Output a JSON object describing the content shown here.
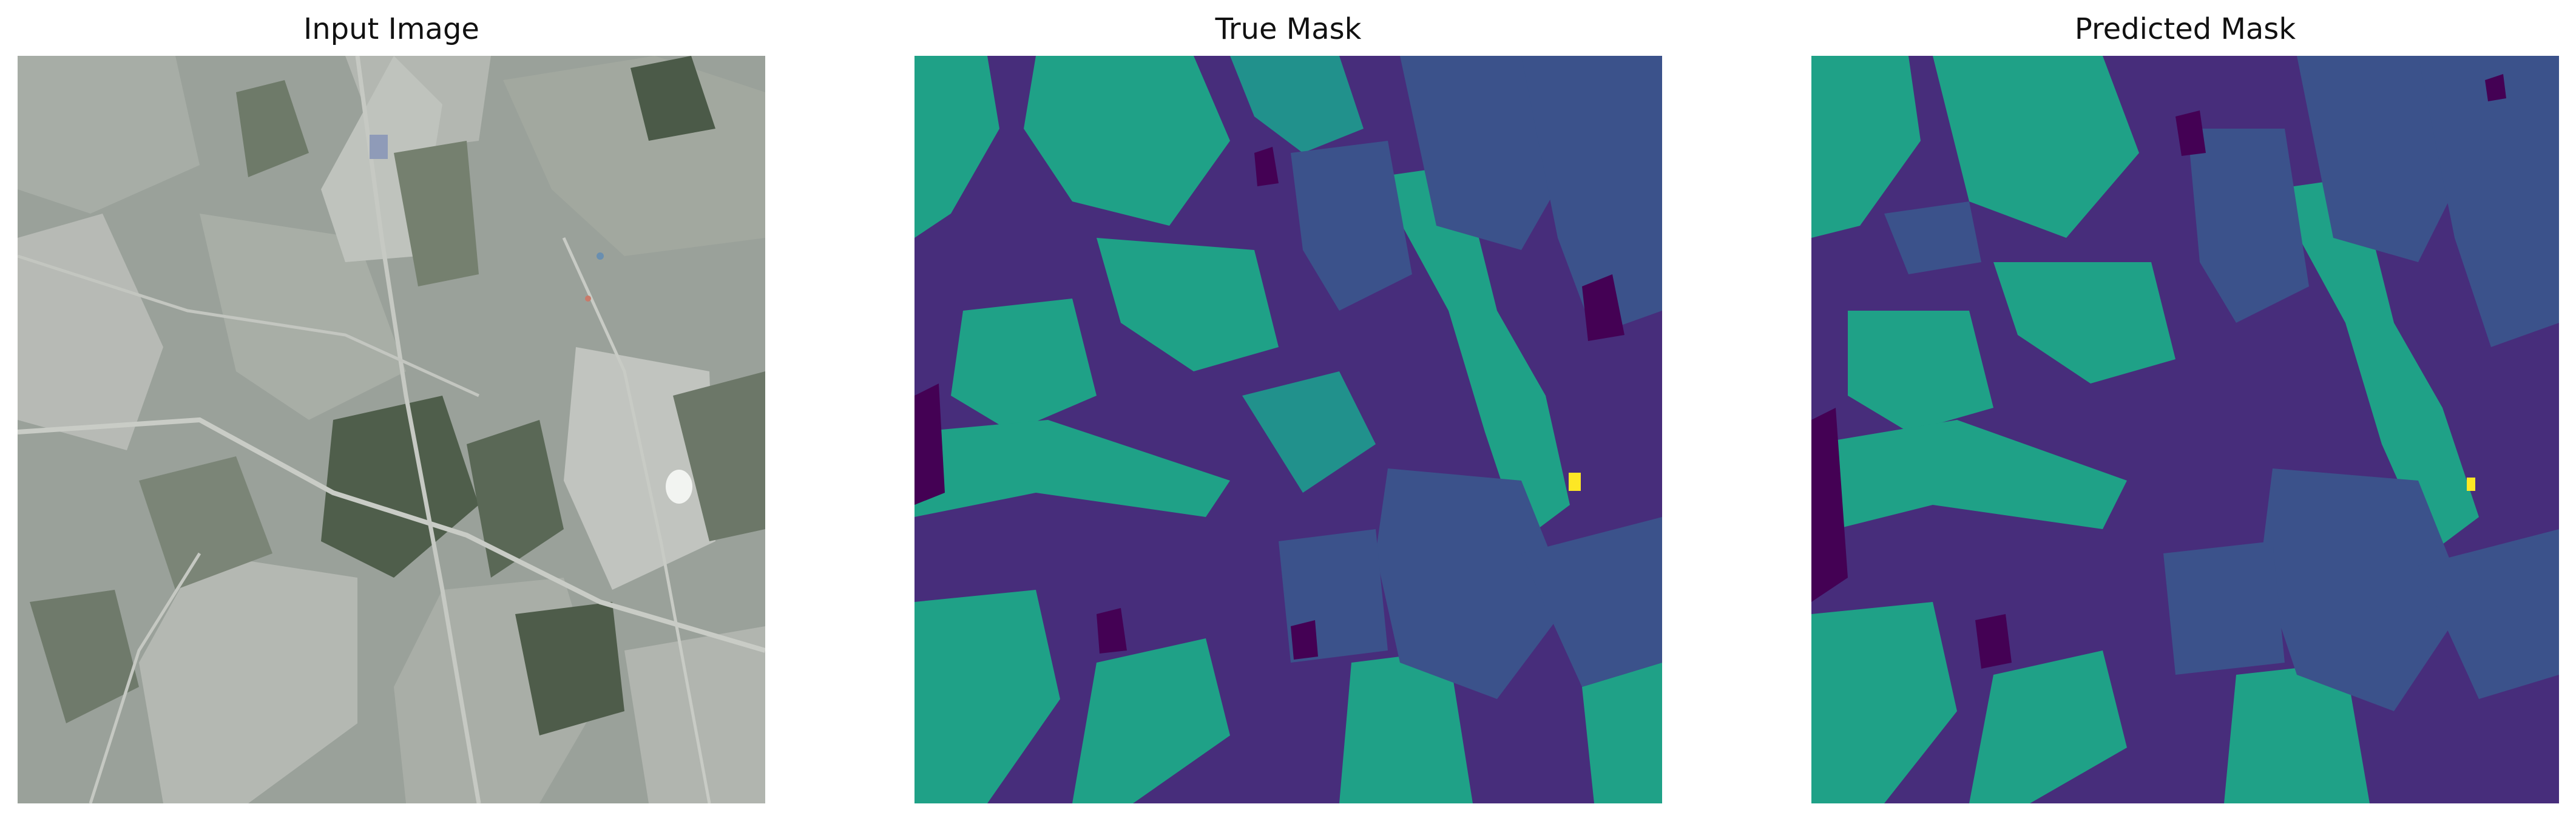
{
  "figure": {
    "panels": [
      {
        "title": "Input Image"
      },
      {
        "title": "True Mask"
      },
      {
        "title": "Predicted Mask"
      }
    ]
  },
  "colors": {
    "mask_class_0": "#440154",
    "mask_class_1": "#472d7b",
    "mask_class_2": "#3b528b",
    "mask_class_3": "#21918c",
    "mask_class_4": "#1fa187",
    "mask_class_5": "#fde725",
    "photo_base": "#9aa19a",
    "photo_dark_field": "#4b5a48",
    "photo_light_field": "#b9bcb6"
  }
}
